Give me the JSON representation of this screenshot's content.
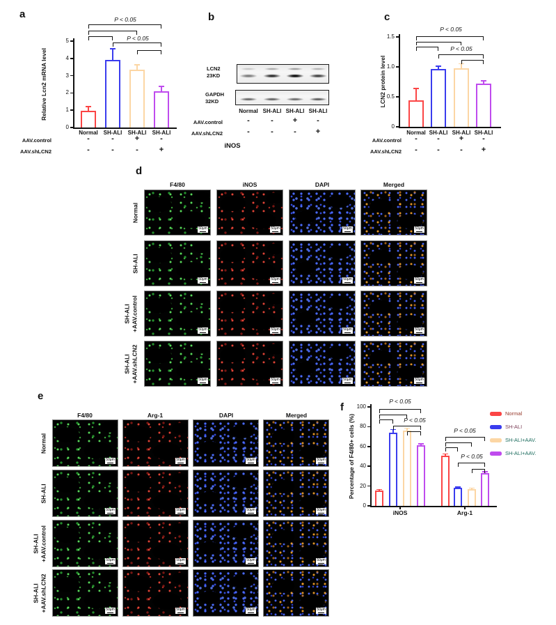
{
  "letters": {
    "a": "a",
    "b": "b",
    "c": "c",
    "d": "d",
    "e": "e",
    "f": "f"
  },
  "colors": {
    "red": "#fb4545",
    "blue": "#3a3cee",
    "peach": "#fcd6a4",
    "purple": "#bf4bee"
  },
  "panel_a": {
    "ylabel": "Relative Lcn2 mRNA level",
    "yticks": [
      "0",
      "1",
      "2",
      "3",
      "4",
      "5"
    ],
    "bars": [
      {
        "label": "Normal",
        "value": 0.95,
        "err": 0.27,
        "color_key": "red"
      },
      {
        "label": "SH-ALI",
        "value": 3.9,
        "err": 0.65,
        "color_key": "blue"
      },
      {
        "label": "SH-ALI",
        "value": 3.35,
        "err": 0.27,
        "color_key": "peach"
      },
      {
        "label": "SH-ALI",
        "value": 2.1,
        "err": 0.27,
        "color_key": "purple"
      }
    ],
    "condition_rows": [
      {
        "label": "AAV.control",
        "values": [
          "-",
          "-",
          "+",
          "-"
        ]
      },
      {
        "label": "AAV.shLCN2",
        "values": [
          "-",
          "-",
          "-",
          "+"
        ]
      }
    ],
    "brackets": [
      {
        "from": 0,
        "to": 1
      },
      {
        "from": 0,
        "to": 2
      },
      {
        "from": 0,
        "to": 3,
        "label": "P < 0.05"
      },
      {
        "from": 1,
        "to": 3,
        "label": "P < 0.05"
      },
      {
        "from": 2,
        "to": 3
      }
    ]
  },
  "panel_b": {
    "blots": [
      {
        "label": "LCN2\n23KD",
        "bands": [
          0.5,
          0.85,
          1.0,
          0.75
        ],
        "double_band": true
      },
      {
        "label": "GAPDH\n32KD",
        "bands": [
          0.6,
          0.62,
          0.58,
          0.65
        ],
        "double_band": false
      }
    ],
    "lane_labels": [
      "Normal",
      "SH-ALI",
      "SH-ALI",
      "SH-ALI"
    ],
    "condition_rows": [
      {
        "label": "AAV.control",
        "values": [
          "-",
          "-",
          "+",
          "-"
        ]
      },
      {
        "label": "AAV.shLCN2",
        "values": [
          "-",
          "-",
          "-",
          "+"
        ]
      }
    ],
    "footer": "iNOS"
  },
  "panel_c": {
    "ylabel": "LCN2 protein level",
    "yticks": [
      "0",
      "0.5",
      "1.0",
      "1.5"
    ],
    "bars": [
      {
        "label": "Normal",
        "value": 0.44,
        "err": 0.2,
        "color_key": "red"
      },
      {
        "label": "SH-ALI",
        "value": 0.97,
        "err": 0.04,
        "color_key": "blue"
      },
      {
        "label": "SH-ALI",
        "value": 0.98,
        "err": 0.07,
        "color_key": "peach"
      },
      {
        "label": "SH-ALI",
        "value": 0.72,
        "err": 0.05,
        "color_key": "purple"
      }
    ],
    "condition_rows": [
      {
        "label": "AAV.control",
        "values": [
          "-",
          "-",
          "+",
          "-"
        ]
      },
      {
        "label": "AAV.shLCN2",
        "values": [
          "-",
          "-",
          "-",
          "+"
        ]
      }
    ],
    "brackets": [
      {
        "from": 0,
        "to": 1
      },
      {
        "from": 0,
        "to": 2
      },
      {
        "from": 0,
        "to": 3,
        "label": "P < 0.05"
      },
      {
        "from": 1,
        "to": 3,
        "label": "P < 0.05"
      },
      {
        "from": 2,
        "to": 3
      }
    ]
  },
  "panel_d": {
    "col_headers": [
      "F4/80",
      "iNOS",
      "DAPI",
      "Merged"
    ],
    "row_labels": [
      "Normal",
      "SH-ALI",
      "SH-ALI\n+AAV.control",
      "SH-ALI\n+AAV.shLCN2"
    ],
    "channels": [
      "green",
      "red",
      "blue",
      "merged"
    ],
    "scale_bar": "50μm"
  },
  "panel_e": {
    "col_headers": [
      "F4/80",
      "Arg-1",
      "DAPI",
      "Merged"
    ],
    "row_labels": [
      "Normal",
      "SH-ALI",
      "SH-ALI\n+AAV.control",
      "SH-ALI\n+AAV.shLCN2"
    ],
    "channels": [
      "green",
      "red",
      "blue",
      "merged"
    ],
    "scale_bar": "50μm"
  },
  "panel_f": {
    "ylabel": "Percentage of F4/80+ cells  (%)",
    "yticks": [
      "0",
      "20",
      "40",
      "60",
      "80",
      "100"
    ],
    "groups": [
      {
        "label": "iNOS",
        "values": [
          {
            "value": 15.5,
            "err": 1
          },
          {
            "value": 74,
            "err": 3
          },
          {
            "value": 76,
            "err": 2.5
          },
          {
            "value": 61,
            "err": 1.5
          }
        ]
      },
      {
        "label": "Arg-1",
        "values": [
          {
            "value": 51,
            "err": 1.5
          },
          {
            "value": 18,
            "err": 1
          },
          {
            "value": 17,
            "err": 1
          },
          {
            "value": 33,
            "err": 1.5
          }
        ]
      }
    ],
    "legend": [
      {
        "label": "Normal",
        "color_key": "red",
        "text_color": "#96382b"
      },
      {
        "label": "SH-ALI",
        "color_key": "blue",
        "text_color": "#7c4059"
      },
      {
        "label": "SH-ALI+AAV.",
        "color_key": "peach",
        "text_color": "#1f6e60"
      },
      {
        "label": "SH-ALI+AAV.",
        "color_key": "purple",
        "text_color": "#1f6e60"
      }
    ],
    "brackets": [
      {
        "from": 0,
        "to": 3,
        "label": "P < 0.05"
      },
      {
        "from": 0,
        "to": 2
      },
      {
        "from": 0,
        "to": 1
      },
      {
        "from": 1,
        "to": 3,
        "label": "P < 0.05"
      },
      {
        "from": 2,
        "to": 3
      },
      {
        "from": 4,
        "to": 7,
        "label": "P < 0.05"
      },
      {
        "from": 4,
        "to": 6
      },
      {
        "from": 4,
        "to": 5
      },
      {
        "from": 5,
        "to": 7,
        "label": "P < 0.05"
      },
      {
        "from": 6,
        "to": 7
      }
    ]
  },
  "chart_data": [
    {
      "type": "bar",
      "panel": "a",
      "ylabel": "Relative Lcn2 mRNA level",
      "categories": [
        "Normal",
        "SH-ALI",
        "SH-ALI+AAV.control",
        "SH-ALI+AAV.shLCN2"
      ],
      "values": [
        0.95,
        3.9,
        3.35,
        2.1
      ],
      "errors": [
        0.27,
        0.65,
        0.27,
        0.27
      ],
      "ylim": [
        0,
        5
      ],
      "annotations": [
        "P < 0.05"
      ]
    },
    {
      "type": "bar",
      "panel": "c",
      "ylabel": "LCN2 protein level",
      "categories": [
        "Normal",
        "SH-ALI",
        "SH-ALI+AAV.control",
        "SH-ALI+AAV.shLCN2"
      ],
      "values": [
        0.44,
        0.97,
        0.98,
        0.72
      ],
      "errors": [
        0.2,
        0.04,
        0.07,
        0.05
      ],
      "ylim": [
        0,
        1.5
      ],
      "annotations": [
        "P < 0.05"
      ]
    },
    {
      "type": "bar",
      "panel": "f",
      "ylabel": "Percentage of F4/80+ cells (%)",
      "categories": [
        "iNOS",
        "Arg-1"
      ],
      "series": [
        {
          "name": "Normal",
          "values": [
            15.5,
            51
          ],
          "errors": [
            1,
            1.5
          ]
        },
        {
          "name": "SH-ALI",
          "values": [
            74,
            18
          ],
          "errors": [
            3,
            1
          ]
        },
        {
          "name": "SH-ALI+AAV.",
          "values": [
            76,
            17
          ],
          "errors": [
            2.5,
            1
          ]
        },
        {
          "name": "SH-ALI+AAV.",
          "values": [
            61,
            33
          ],
          "errors": [
            1.5,
            1.5
          ]
        }
      ],
      "ylim": [
        0,
        100
      ],
      "legend_position": "right",
      "annotations": [
        "P < 0.05"
      ]
    }
  ]
}
